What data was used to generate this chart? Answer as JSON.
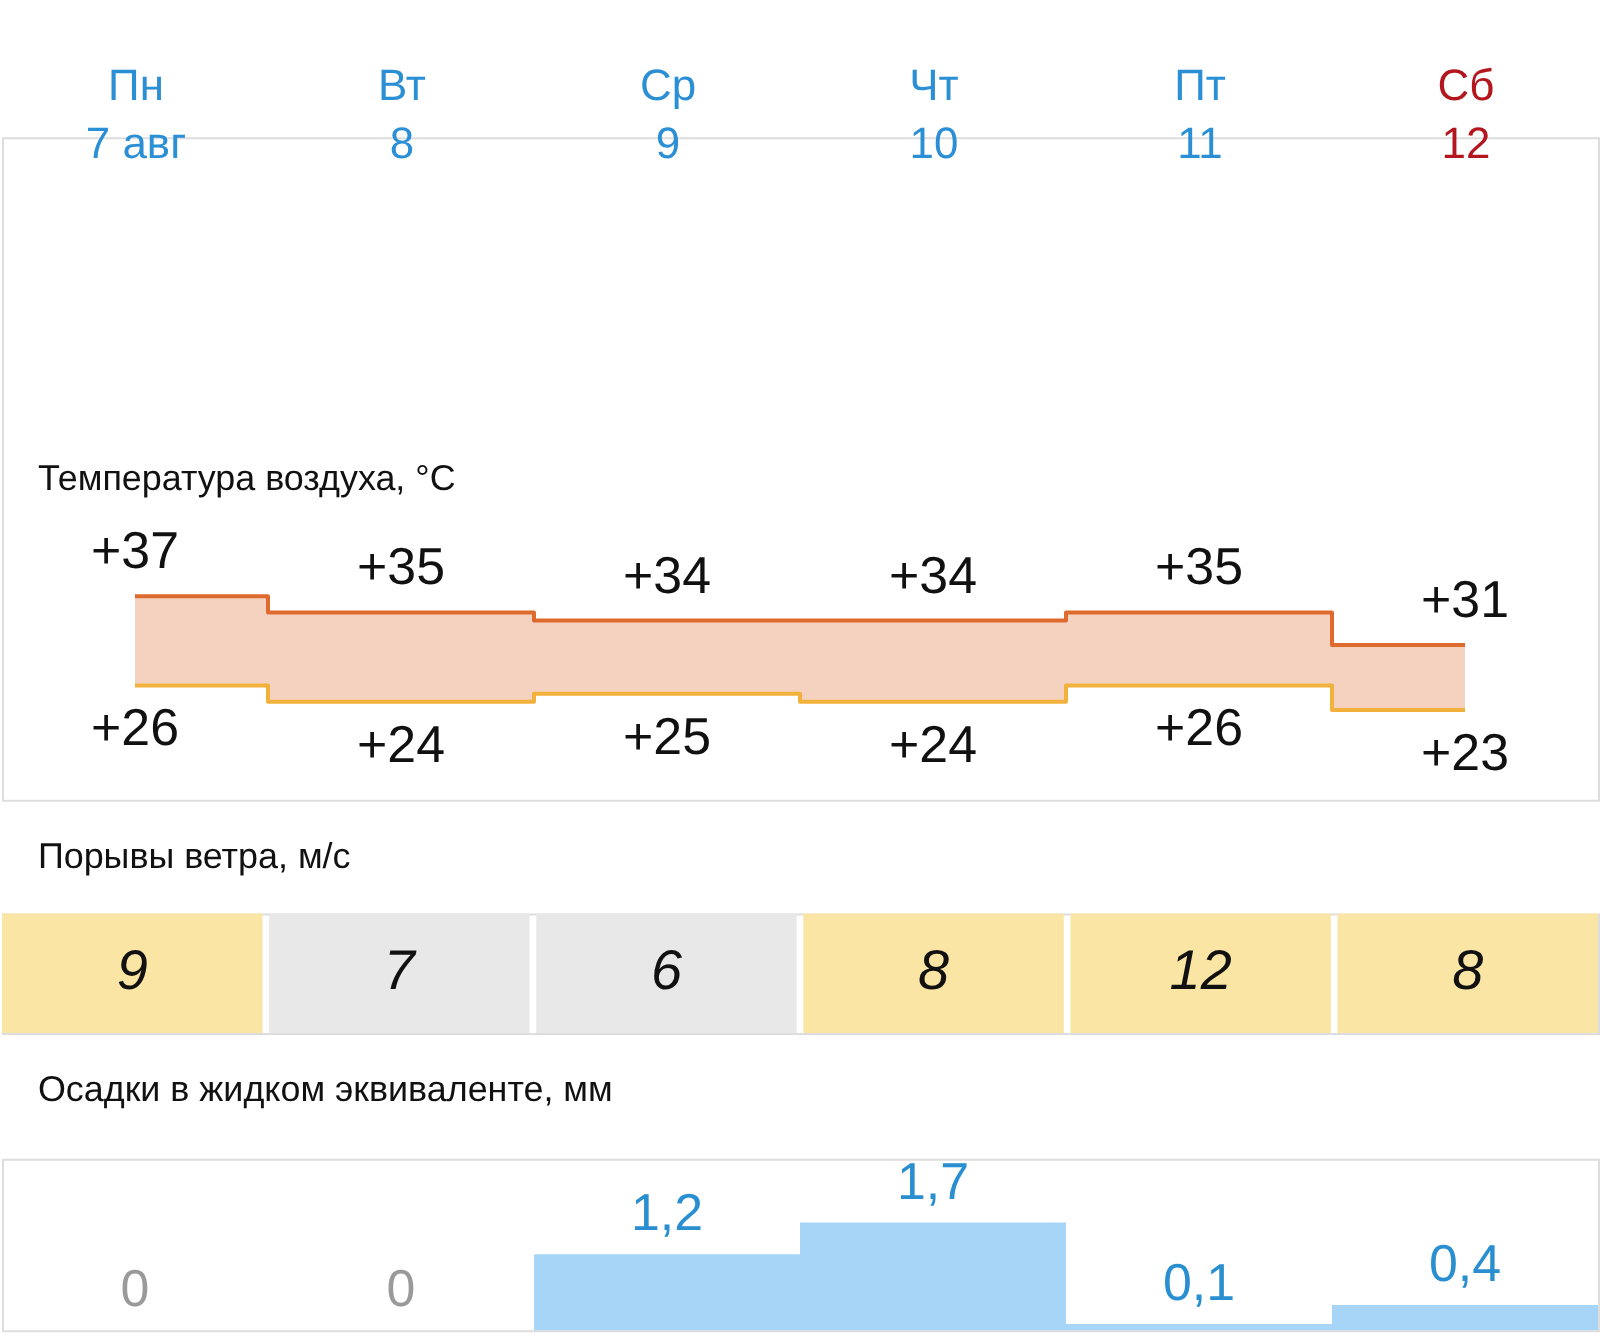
{
  "chart_data": [
    {
      "type": "step",
      "title": "Температура воздуха, °C",
      "categories": [
        "Пн 7 авг",
        "Вт 8",
        "Ср 9",
        "Чт 10",
        "Пт 11",
        "Сб 12"
      ],
      "tick_labels": "x",
      "series": [
        {
          "color": "#de6a2e",
          "values": [
            37,
            35,
            34,
            34,
            35,
            31
          ],
          "value_labels": [
            "+37",
            "+35",
            "+34",
            "+34",
            "+35",
            "+31"
          ],
          "lower": [
            26,
            24,
            25,
            24,
            26,
            23
          ],
          "upper": [
            37,
            35,
            34,
            34,
            35,
            31
          ]
        },
        {
          "color": "#f2b13a",
          "values": [
            26,
            24,
            25,
            24,
            26,
            23
          ],
          "value_labels": [
            "+26",
            "+24",
            "+25",
            "+24",
            "+26",
            "+23"
          ]
        }
      ]
    },
    {
      "type": "heatmap",
      "title": "Порывы ветра, м/с",
      "categories": [
        null,
        null,
        null,
        null,
        null,
        null
      ],
      "y_categories": [
        null
      ],
      "cells": [
        [
          9,
          7,
          6,
          8,
          12,
          8
        ]
      ],
      "colors": [
        "#fbe5a4",
        "#e8e8e8",
        "#e8e8e8",
        "#fbe5a4",
        "#fbe5a4",
        "#fbe5a4"
      ],
      "data_labels": true,
      "tick_labels": false
    },
    {
      "type": "bar",
      "title": "Осадки в жидком эквиваленте, мм",
      "categories": [
        null,
        null,
        null,
        null,
        null,
        null
      ],
      "values": [
        0,
        0,
        1.2,
        1.7,
        0.1,
        0.4
      ],
      "value_labels": [
        "0",
        "0",
        "1,2",
        "1,7",
        "0,1",
        "0,4"
      ],
      "color": "#a6d5f8",
      "tick_labels": false
    }
  ]
}
